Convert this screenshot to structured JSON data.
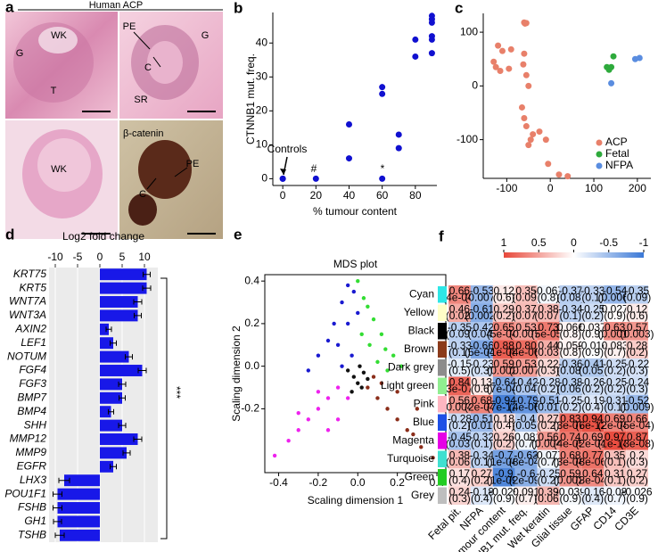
{
  "figure": {
    "panel_labels": [
      "a",
      "b",
      "c",
      "d",
      "e",
      "f"
    ],
    "histology": {
      "title": "Human ACP",
      "labels": [
        "WK",
        "G",
        "T",
        "PE",
        "C",
        "G",
        "SR",
        "WK",
        "β-catenin",
        "PE",
        "C"
      ]
    }
  },
  "chart_data": [
    {
      "type": "scatter",
      "x_label": "% tumour content",
      "y_label": "CTNNB1 mut. freq.",
      "xlim": [
        -6,
        93
      ],
      "xticks": [
        0,
        20,
        40,
        60,
        80
      ],
      "ylim": [
        -2,
        49
      ],
      "yticks": [
        0,
        10,
        20,
        30,
        40
      ],
      "annotations": [
        "Controls",
        "#",
        "*"
      ],
      "series": [
        {
          "color": "#1010d0",
          "x": [
            0,
            0,
            20,
            40,
            40,
            60,
            60,
            60,
            70,
            70,
            80,
            80,
            90,
            90,
            90,
            90,
            90,
            90
          ],
          "values": [
            0,
            0,
            0,
            6,
            16,
            0,
            25,
            27,
            9,
            13,
            36,
            41,
            37,
            41,
            42,
            46,
            47,
            48
          ]
        }
      ]
    },
    {
      "type": "scatter",
      "xlim": [
        -154,
        231
      ],
      "xticks": [
        -100,
        0,
        100,
        200
      ],
      "ylim": [
        -172,
        135
      ],
      "yticks": [
        -100,
        0,
        100
      ],
      "series": [
        {
          "name": "ACP",
          "color": "#e8806a",
          "x": [
            -60,
            -58,
            -55,
            -120,
            -110,
            -90,
            -130,
            -125,
            -115,
            -95,
            -60,
            -62,
            -55,
            -50,
            -65,
            -60,
            -55,
            -40,
            -45,
            -50,
            -25,
            -10,
            -5,
            20,
            40
          ],
          "values": [
            118,
            116,
            117,
            75,
            65,
            68,
            45,
            35,
            28,
            32,
            60,
            40,
            20,
            0,
            -40,
            -60,
            -75,
            -90,
            -100,
            -110,
            -85,
            -100,
            -145,
            -165,
            -168
          ]
        },
        {
          "name": "Fetal",
          "color": "#2eaa3c",
          "x": [
            130,
            140,
            135,
            145
          ],
          "values": [
            35,
            35,
            30,
            55
          ]
        },
        {
          "name": "NFPA",
          "color": "#5a8de0",
          "x": [
            140,
            195,
            205
          ],
          "values": [
            5,
            50,
            52
          ]
        }
      ]
    },
    {
      "type": "bar",
      "title": "Log2 fold change",
      "orientation": "horizontal",
      "color": "#1818e8",
      "grid": true,
      "categories": [
        "KRT75",
        "KRT5",
        "WNT7A",
        "WNT3A",
        "AXIN2",
        "LEF1",
        "NOTUM",
        "FGF4",
        "FGF3",
        "BMP7",
        "BMP4",
        "SHH",
        "MMP12",
        "MMP9",
        "EGFR",
        "LHX3",
        "POU1F1",
        "FSHB",
        "GH1",
        "TSHB"
      ],
      "values": [
        10.5,
        10.5,
        8.5,
        8.5,
        2,
        3,
        6.5,
        9.5,
        5,
        5,
        2.5,
        5,
        8.5,
        6,
        3,
        -8,
        -9.5,
        -9.5,
        -9.5,
        -9
      ],
      "errors": [
        0.8,
        0.9,
        0.9,
        0.8,
        0.6,
        0.7,
        0.8,
        0.9,
        0.8,
        0.7,
        0.6,
        0.8,
        0.9,
        0.8,
        0.7,
        1.2,
        1.0,
        1.0,
        0.9,
        1.0
      ],
      "xlim": [
        -11.4,
        13
      ],
      "xticks": [
        -10,
        -5,
        0,
        5,
        10
      ],
      "annotation": "***"
    },
    {
      "type": "scatter",
      "title": "MDS plot",
      "x_label": "Scaling dimension 1",
      "y_label": "Scaling dimension 2",
      "xlim": [
        -0.47,
        0.445
      ],
      "xticks": [
        -0.4,
        -0.2,
        {
          "value": 0,
          "label": "0.0"
        },
        0.2,
        0.4
      ],
      "ylim": [
        -0.5,
        0.43
      ],
      "yticks": [
        -0.2,
        {
          "value": 0,
          "label": "0.0"
        },
        0.2,
        0.4
      ],
      "series": [
        {
          "color": "#1a1ad0",
          "x": [
            -0.05,
            -0.02,
            -0.08,
            -0.12,
            -0.15,
            -0.2,
            -0.1,
            -0.05,
            -0.03,
            -0.25,
            -0.08,
            0.0
          ],
          "values": [
            0.38,
            0.35,
            0.3,
            0.2,
            0.12,
            0.05,
            0.1,
            0.2,
            0.05,
            -0.02,
            0.0,
            0.25
          ]
        },
        {
          "color": "#33dd33",
          "x": [
            0.0,
            0.03,
            0.08,
            0.12,
            0.18,
            0.22,
            0.06,
            0.1,
            0.02,
            0.15,
            0.05,
            0.14
          ],
          "values": [
            0.4,
            0.32,
            0.22,
            0.15,
            0.05,
            0.0,
            0.1,
            0.02,
            0.15,
            -0.02,
            0.28,
            0.08
          ]
        },
        {
          "color": "#8b2e1a",
          "x": [
            0.05,
            0.1,
            0.15,
            0.2,
            0.25,
            0.32,
            0.38,
            0.12,
            0.2,
            0.3,
            0.08,
            0.28
          ],
          "values": [
            -0.1,
            -0.15,
            -0.2,
            -0.25,
            -0.3,
            -0.38,
            -0.43,
            -0.08,
            -0.12,
            -0.2,
            -0.05,
            -0.32
          ]
        },
        {
          "color": "#ee22ee",
          "x": [
            -0.1,
            -0.15,
            -0.2,
            -0.25,
            -0.3,
            -0.35,
            -0.42,
            -0.05,
            -0.1,
            -0.2,
            -0.3,
            -0.15
          ],
          "values": [
            -0.1,
            -0.15,
            -0.2,
            -0.25,
            -0.3,
            -0.35,
            -0.42,
            -0.15,
            -0.25,
            -0.12,
            -0.22,
            -0.3
          ]
        },
        {
          "color": "#111111",
          "x": [
            -0.02,
            0.0,
            0.03,
            -0.05,
            0.02,
            0.05,
            -0.03,
            0.01
          ],
          "values": [
            -0.05,
            -0.08,
            -0.03,
            -0.02,
            -0.1,
            -0.06,
            -0.12,
            0.0
          ]
        }
      ]
    },
    {
      "type": "heatmap",
      "rows": [
        "Cyan",
        "Yellow",
        "Black",
        "Brown",
        "Dark grey",
        "Light green",
        "Pink",
        "Blue",
        "Magenta",
        "Turquoise",
        "Green",
        "Grey"
      ],
      "row_colors": [
        "#2ee6e6",
        "#ffffc8",
        "#000000",
        "#8b3a1a",
        "#8c8c8c",
        "#90ee90",
        "#ffb6c1",
        "#1e50e6",
        "#e600e6",
        "#40e0d0",
        "#22cc22",
        "#bebebe"
      ],
      "columns": [
        "Fetal pit.",
        "NFPA",
        "Tumour content",
        "CTNNB1 mut. freq.",
        "Wet keratin",
        "Glial tissue",
        "GFAP",
        "CD14",
        "CD3E"
      ],
      "clim": [
        -1,
        1
      ],
      "colorbar_ticks": [
        1,
        0.5,
        0,
        -0.5,
        -1
      ],
      "scale_colors": [
        "#3a78d6",
        "#ffffff",
        "#e8483a"
      ],
      "values": [
        [
          0.66,
          -0.53,
          0.12,
          0.35,
          -0.067,
          -0.37,
          -0.33,
          -0.54,
          -0.35
        ],
        [
          0.46,
          -0.61,
          0.29,
          0.37,
          0.38,
          -0.34,
          -0.25,
          0.027,
          0.12
        ],
        [
          -0.35,
          -0.42,
          0.65,
          0.53,
          0.73,
          0.066,
          0.037,
          0.63,
          0.57
        ],
        [
          -0.33,
          -0.66,
          0.88,
          0.8,
          0.44,
          0.059,
          -0.014,
          0.083,
          0.28
        ],
        [
          -0.15,
          -0.23,
          0.59,
          0.53,
          0.22,
          -0.36,
          -0.41,
          -0.25,
          -0.22
        ],
        [
          0.84,
          0.13,
          -0.64,
          -0.42,
          -0.28,
          -0.38,
          -0.26,
          -0.25,
          -0.24
        ],
        [
          0.56,
          0.68,
          -0.94,
          -0.79,
          -0.51,
          -0.25,
          -0.19,
          -0.31,
          -0.52
        ],
        [
          -0.28,
          -0.51,
          0.18,
          -0.4,
          0.27,
          0.83,
          0.94,
          0.69,
          0.66
        ],
        [
          -0.45,
          -0.32,
          0.26,
          -0.081,
          0.56,
          0.74,
          0.69,
          0.97,
          0.87
        ],
        [
          0.38,
          -0.34,
          -0.7,
          -0.63,
          -0.077,
          0.68,
          0.77,
          0.35,
          0.2
        ],
        [
          0.17,
          0.27,
          -0.9,
          -0.6,
          -0.25,
          0.59,
          0.64,
          0.31,
          0.27
        ],
        [
          0.24,
          -0.18,
          -0.029,
          0.091,
          0.39,
          -0.039,
          -0.16,
          -0.08,
          -0.026
        ]
      ],
      "value_labels": [
        [
          null,
          null,
          null,
          null,
          null,
          null,
          null,
          null,
          null
        ],
        [
          null,
          null,
          null,
          null,
          null,
          null,
          null,
          null,
          null
        ],
        [
          null,
          null,
          null,
          null,
          null,
          null,
          null,
          null,
          null
        ],
        [
          null,
          null,
          null,
          "0.80",
          null,
          null,
          null,
          null,
          null
        ],
        [
          null,
          null,
          null,
          null,
          null,
          null,
          null,
          null,
          null
        ],
        [
          null,
          null,
          null,
          null,
          null,
          null,
          null,
          null,
          null
        ],
        [
          null,
          null,
          null,
          null,
          null,
          null,
          null,
          null,
          null
        ],
        [
          null,
          null,
          null,
          null,
          null,
          null,
          null,
          null,
          null
        ],
        [
          null,
          null,
          null,
          null,
          null,
          null,
          null,
          null,
          null
        ],
        [
          null,
          null,
          null,
          null,
          null,
          null,
          null,
          null,
          null
        ],
        [
          null,
          null,
          null,
          null,
          null,
          null,
          null,
          null,
          null
        ],
        [
          null,
          null,
          null,
          null,
          null,
          null,
          null,
          null,
          null
        ]
      ],
      "p_labels": [
        [
          "(4e-04)",
          "(0.007)",
          "(0.6)",
          "(0.09)",
          "(0.8)",
          "(0.08)",
          "(0.1)",
          "(0.006)",
          "(0.09)"
        ],
        [
          "(0.02)",
          "(0.002)",
          "(0.2)",
          "(0.07)",
          "(0.07)",
          "(0.1)",
          "(0.2)",
          "(0.9)",
          "(0.6)"
        ],
        [
          "(0.09)",
          "(0.04)",
          "(5e-04)",
          "(0.007)",
          "(5e-05)",
          "(0.8)",
          "(0.9)",
          "(0.001)",
          "(0.003)"
        ],
        [
          "(0.1)",
          "(5e-04)",
          "(1e-08)",
          "(4e-06)",
          "(0.03)",
          "(0.8)",
          "(0.9)",
          "(0.7)",
          "(0.2)"
        ],
        [
          "(0.5)",
          "(0.3)",
          "(0.002)",
          "(0.007)",
          "(0.3)",
          "(0.08)",
          "(0.05)",
          "(0.2)",
          "(0.3)"
        ],
        [
          "(3e-07)",
          "(0.6)",
          "(7e-04)",
          "(0.04)",
          "(0.2)",
          "(0.06)",
          "(0.2)",
          "(0.2)",
          "(0.3)"
        ],
        [
          "(0.004)",
          "(2e-04)",
          "(7e-12)",
          "(4e-06)",
          "(0.01)",
          "(0.2)",
          "(0.4)",
          "(0.1)",
          "(0.009)"
        ],
        [
          "(0.2)",
          "(0.01)",
          "(0.4)",
          "(0.05)",
          "(0.2)",
          "(3e-07)",
          "(6e-12)",
          "(2e-04)",
          "(5e-04)"
        ],
        [
          "(0.03)",
          "(0.1)",
          "(0.2)",
          "(0.7)",
          "(0.004)",
          "(4e-05)",
          "(2e-04)",
          "(1e-14)",
          "(3e-08)"
        ],
        [
          "(0.06)",
          "(0.1)",
          "(1e-04)",
          "(8e-04)",
          "(0.7)",
          "(3e-04)",
          "(8e-06)",
          "(0.1)",
          "(0.3)"
        ],
        [
          "(0.4)",
          "(0.2)",
          "(1e-09)",
          "(2e-09)",
          "(0.2)",
          "(0.002)",
          "(8e-04)",
          "(0.1)",
          "(0.2)"
        ],
        [
          "(0.3)",
          "(0.4)",
          "(0.9)",
          "(0.7)",
          "(0.06)",
          "(0.9)",
          "(0.4)",
          "(0.7)",
          "(0.9)"
        ]
      ]
    }
  ]
}
